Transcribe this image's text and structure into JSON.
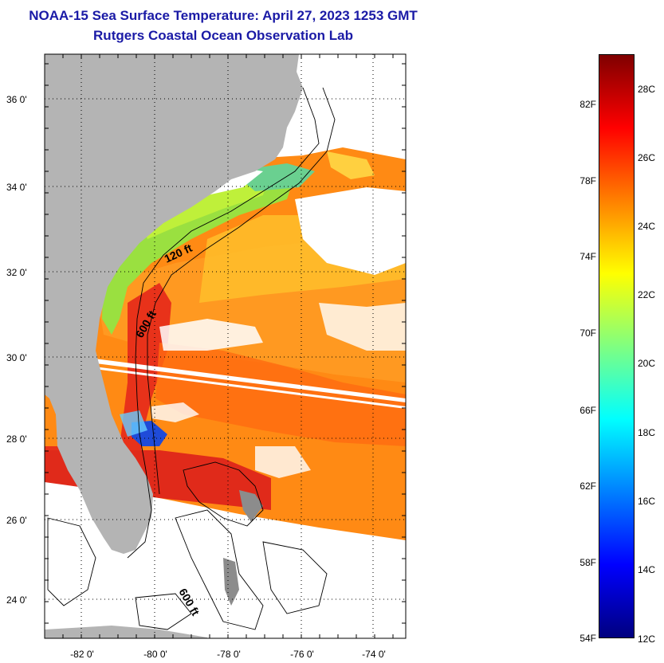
{
  "title": {
    "line1": "NOAA-15 Sea Surface Temperature:  April 27, 2023 1253 GMT",
    "line2": "Rutgers Coastal Ocean Observation Lab"
  },
  "axes": {
    "lat_labels": [
      "36 0'",
      "34 0'",
      "32 0'",
      "30 0'",
      "28 0'",
      "26 0'",
      "24 0'"
    ],
    "lon_labels": [
      "-82 0'",
      "-80 0'",
      "-78 0'",
      "-76 0'",
      "-74 0'"
    ]
  },
  "contours": {
    "label_120": "120 ft",
    "label_600_a": "600 ft",
    "label_600_b": "600 ft"
  },
  "colorbar": {
    "fahrenheit": [
      "82F",
      "78F",
      "74F",
      "70F",
      "66F",
      "62F",
      "58F",
      "54F"
    ],
    "celsius": [
      "28C",
      "26C",
      "24C",
      "22C",
      "20C",
      "18C",
      "16C",
      "14C",
      "12C"
    ],
    "gradient_stops": [
      "#00007f",
      "#0000ff",
      "#0080ff",
      "#00ffff",
      "#80ff80",
      "#ffff00",
      "#ff8000",
      "#ff0000",
      "#7f0000"
    ]
  },
  "colors": {
    "title": "#1a1aa6",
    "land": "#b4b4b4",
    "warm_sea": "#ff7a10",
    "gulfstream": "#e8321a",
    "shelf": "#9ae040"
  }
}
